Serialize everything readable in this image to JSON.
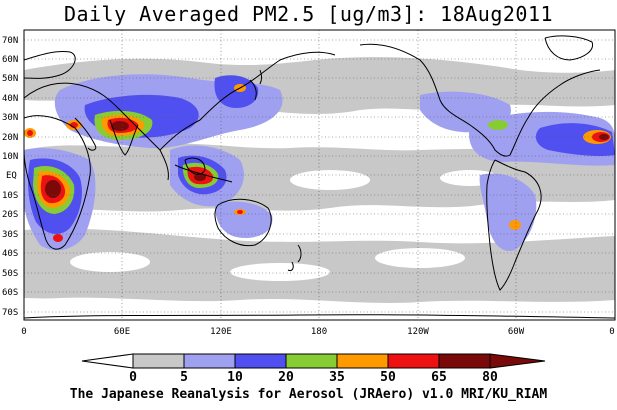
{
  "title": "Daily Averaged PM2.5 [ug/m3]: 18Aug2011",
  "credit": "The Japanese Reanalysis for Aerosol (JRAero) v1.0 MRI/KU_RIAM",
  "lat_labels": [
    "70N",
    "60N",
    "50N",
    "40N",
    "30N",
    "20N",
    "10N",
    "EQ",
    "10S",
    "20S",
    "30S",
    "40S",
    "50S",
    "60S",
    "70S"
  ],
  "lon_labels": [
    "0",
    "60E",
    "120E",
    "180",
    "120W",
    "60W",
    "0"
  ],
  "colorbar": {
    "levels": [
      "0",
      "5",
      "10",
      "20",
      "35",
      "50",
      "65",
      "80"
    ],
    "colors": [
      "#ffffff",
      "#c8c8c8",
      "#a0a0f0",
      "#5050f0",
      "#88cc33",
      "#ff9900",
      "#ee1111",
      "#7a0a0a"
    ]
  }
}
